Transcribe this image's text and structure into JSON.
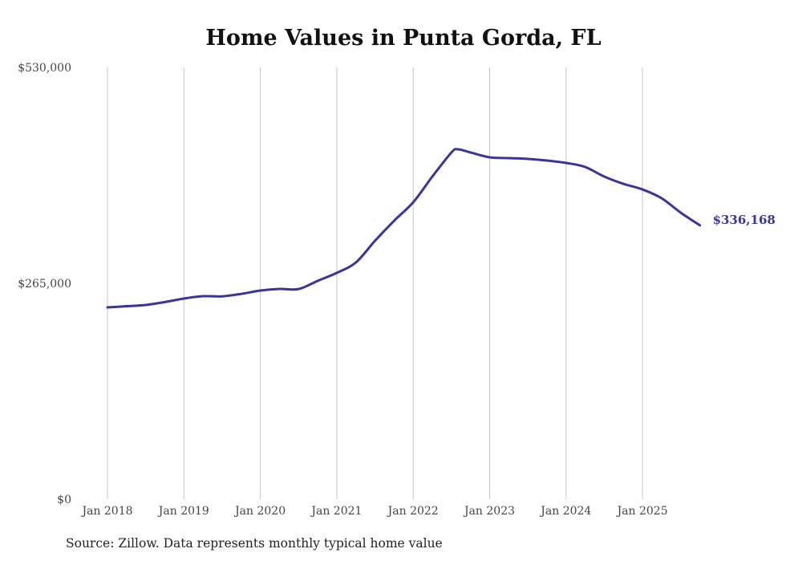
{
  "chart_data": {
    "type": "line",
    "title": "Home Values in Punta Gorda, FL",
    "source": "Source: Zillow. Data represents monthly typical home value",
    "xlabel": "",
    "ylabel": "",
    "ylim": [
      0,
      530000
    ],
    "yticks": [
      {
        "value": 0,
        "label": "$0"
      },
      {
        "value": 265000,
        "label": "$265,000"
      },
      {
        "value": 530000,
        "label": "$530,000"
      }
    ],
    "xticks": [
      {
        "date": "2018-01",
        "label": "Jan 2018"
      },
      {
        "date": "2019-01",
        "label": "Jan 2019"
      },
      {
        "date": "2020-01",
        "label": "Jan 2020"
      },
      {
        "date": "2021-01",
        "label": "Jan 2021"
      },
      {
        "date": "2022-01",
        "label": "Jan 2022"
      },
      {
        "date": "2023-01",
        "label": "Jan 2023"
      },
      {
        "date": "2024-01",
        "label": "Jan 2024"
      },
      {
        "date": "2025-01",
        "label": "Jan 2025"
      }
    ],
    "grid": "vertical",
    "line_color": "#3b3499",
    "series": [
      {
        "name": "Typical home value",
        "points": [
          [
            "2018-01",
            235400
          ],
          [
            "2018-04",
            236900
          ],
          [
            "2018-07",
            238400
          ],
          [
            "2018-10",
            242000
          ],
          [
            "2019-01",
            246300
          ],
          [
            "2019-04",
            249200
          ],
          [
            "2019-07",
            249000
          ],
          [
            "2019-10",
            252000
          ],
          [
            "2020-01",
            256100
          ],
          [
            "2020-04",
            258100
          ],
          [
            "2020-07",
            258000
          ],
          [
            "2020-10",
            268000
          ],
          [
            "2021-01",
            277800
          ],
          [
            "2021-04",
            290600
          ],
          [
            "2021-07",
            317200
          ],
          [
            "2021-10",
            341800
          ],
          [
            "2022-01",
            364500
          ],
          [
            "2022-04",
            396000
          ],
          [
            "2022-07",
            425600
          ],
          [
            "2022-08",
            429500
          ],
          [
            "2022-10",
            425600
          ],
          [
            "2023-01",
            419700
          ],
          [
            "2023-04",
            418700
          ],
          [
            "2023-07",
            417700
          ],
          [
            "2023-10",
            415700
          ],
          [
            "2024-01",
            412800
          ],
          [
            "2024-04",
            407800
          ],
          [
            "2024-07",
            396000
          ],
          [
            "2024-10",
            387100
          ],
          [
            "2025-01",
            380200
          ],
          [
            "2025-04",
            369400
          ],
          [
            "2025-07",
            351700
          ],
          [
            "2025-10",
            336168
          ]
        ]
      }
    ],
    "end_label": "$336,168"
  }
}
